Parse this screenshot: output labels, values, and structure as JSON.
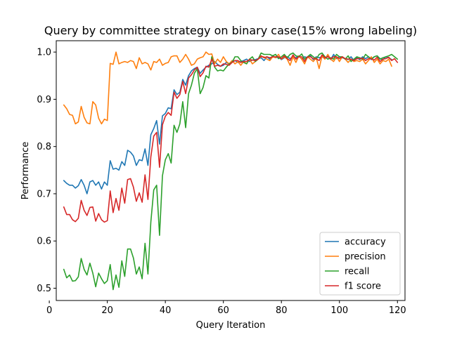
{
  "chart_data": {
    "type": "line",
    "title": "Query by committee strategy on binary case(15% wrong labeling)",
    "xlabel": "Query Iteration",
    "ylabel": "Performance",
    "xlim": [
      2.4,
      122.6
    ],
    "ylim": [
      0.474,
      1.024
    ],
    "xticks": [
      0,
      20,
      40,
      60,
      80,
      100,
      120
    ],
    "yticks": [
      0.5,
      0.6,
      0.7,
      0.8,
      0.9,
      1.0
    ],
    "xtick_labels": [
      "0",
      "20",
      "40",
      "60",
      "80",
      "100",
      "120"
    ],
    "ytick_labels": [
      "0.5",
      "0.6",
      "0.7",
      "0.8",
      "0.9",
      "1.0"
    ],
    "grid": false,
    "legend_position": "lower right",
    "x_start": 5,
    "x_step": 1,
    "series": [
      {
        "name": "accuracy",
        "color": "#1f77b4",
        "values": [
          0.728,
          0.722,
          0.718,
          0.718,
          0.712,
          0.717,
          0.73,
          0.718,
          0.7,
          0.725,
          0.728,
          0.718,
          0.725,
          0.71,
          0.725,
          0.718,
          0.77,
          0.752,
          0.754,
          0.75,
          0.768,
          0.76,
          0.792,
          0.788,
          0.78,
          0.76,
          0.772,
          0.77,
          0.795,
          0.76,
          0.825,
          0.838,
          0.855,
          0.805,
          0.865,
          0.87,
          0.882,
          0.88,
          0.92,
          0.91,
          0.915,
          0.942,
          0.93,
          0.95,
          0.96,
          0.965,
          0.968,
          0.955,
          0.962,
          0.968,
          0.972,
          0.975,
          0.98,
          0.974,
          0.97,
          0.972,
          0.978,
          0.975,
          0.98,
          0.982,
          0.978,
          0.98,
          0.982,
          0.985,
          0.98,
          0.983,
          0.984,
          0.986,
          0.988,
          0.982,
          0.99,
          0.985,
          0.992,
          0.988,
          0.99,
          0.984,
          0.988,
          0.99,
          0.986,
          0.99,
          0.988,
          0.992,
          0.985,
          0.99,
          0.988,
          0.992,
          0.984,
          0.99,
          0.988,
          0.99,
          0.986,
          0.992,
          0.984,
          0.995,
          0.986,
          0.99,
          0.988,
          0.986,
          0.984,
          0.99,
          0.982,
          0.988,
          0.984,
          0.99,
          0.986,
          0.99,
          0.984,
          0.99,
          0.992,
          0.986,
          0.984,
          0.99,
          0.988,
          0.984
        ]
      },
      {
        "name": "precision",
        "color": "#ff7f0e",
        "values": [
          0.888,
          0.88,
          0.868,
          0.866,
          0.848,
          0.852,
          0.885,
          0.862,
          0.85,
          0.848,
          0.895,
          0.888,
          0.86,
          0.848,
          0.858,
          0.855,
          0.976,
          0.974,
          1.0,
          0.975,
          0.978,
          0.98,
          0.978,
          0.982,
          0.98,
          0.965,
          0.988,
          0.975,
          0.978,
          0.975,
          0.962,
          0.98,
          0.978,
          0.985,
          0.972,
          0.976,
          0.978,
          0.99,
          0.992,
          0.992,
          0.978,
          0.985,
          0.995,
          0.985,
          0.972,
          0.975,
          0.985,
          0.988,
          0.99,
          1.0,
          0.995,
          0.996,
          0.975,
          0.985,
          0.978,
          0.99,
          0.98,
          0.975,
          0.982,
          0.975,
          0.98,
          0.972,
          0.98,
          0.975,
          0.985,
          0.975,
          0.98,
          0.985,
          0.99,
          0.99,
          0.985,
          0.982,
          0.99,
          0.988,
          0.995,
          0.985,
          0.99,
          0.985,
          0.972,
          0.99,
          0.978,
          0.992,
          0.985,
          0.975,
          0.99,
          0.985,
          0.98,
          0.988,
          0.965,
          0.992,
          0.985,
          0.995,
          0.985,
          0.98,
          0.99,
          0.98,
          0.99,
          0.985,
          0.978,
          0.985,
          0.98,
          0.982,
          0.98,
          0.985,
          0.975,
          0.982,
          0.99,
          0.978,
          0.985,
          0.975,
          0.982,
          0.98,
          0.985,
          0.97
        ]
      },
      {
        "name": "recall",
        "color": "#2ca02c",
        "values": [
          0.54,
          0.522,
          0.528,
          0.515,
          0.516,
          0.524,
          0.563,
          0.54,
          0.528,
          0.553,
          0.532,
          0.503,
          0.532,
          0.52,
          0.51,
          0.516,
          0.55,
          0.497,
          0.528,
          0.502,
          0.558,
          0.525,
          0.583,
          0.583,
          0.564,
          0.53,
          0.545,
          0.52,
          0.595,
          0.53,
          0.64,
          0.708,
          0.718,
          0.612,
          0.738,
          0.772,
          0.785,
          0.765,
          0.845,
          0.83,
          0.848,
          0.895,
          0.84,
          0.912,
          0.93,
          0.955,
          0.965,
          0.912,
          0.925,
          0.95,
          0.945,
          0.99,
          0.968,
          0.96,
          0.962,
          0.96,
          0.968,
          0.975,
          0.978,
          0.99,
          0.99,
          0.982,
          0.978,
          0.975,
          0.985,
          0.99,
          0.98,
          0.985,
          0.998,
          0.995,
          0.995,
          0.995,
          0.992,
          0.995,
          0.986,
          0.99,
          0.995,
          0.988,
          0.995,
          0.998,
          0.992,
          0.99,
          0.996,
          0.985,
          0.99,
          0.995,
          0.99,
          0.985,
          0.995,
          0.998,
          0.99,
          0.985,
          0.988,
          0.985,
          0.995,
          0.99,
          0.99,
          0.985,
          0.992,
          0.98,
          0.985,
          0.99,
          0.988,
          0.985,
          0.995,
          0.99,
          0.985,
          0.99,
          0.992,
          0.985,
          0.988,
          0.99,
          0.992,
          0.995,
          0.99,
          0.985
        ]
      },
      {
        "name": "f1 score",
        "color": "#d62728",
        "values": [
          0.672,
          0.656,
          0.656,
          0.645,
          0.641,
          0.648,
          0.686,
          0.665,
          0.654,
          0.671,
          0.672,
          0.642,
          0.658,
          0.645,
          0.64,
          0.643,
          0.706,
          0.66,
          0.69,
          0.665,
          0.712,
          0.68,
          0.73,
          0.732,
          0.714,
          0.684,
          0.702,
          0.682,
          0.74,
          0.688,
          0.778,
          0.822,
          0.83,
          0.756,
          0.846,
          0.864,
          0.872,
          0.866,
          0.915,
          0.902,
          0.91,
          0.938,
          0.912,
          0.945,
          0.952,
          0.962,
          0.968,
          0.948,
          0.956,
          0.97,
          0.968,
          0.985,
          0.97,
          0.972,
          0.97,
          0.975,
          0.974,
          0.972,
          0.978,
          0.982,
          0.982,
          0.978,
          0.98,
          0.98,
          0.984,
          0.983,
          0.982,
          0.985,
          0.992,
          0.988,
          0.99,
          0.988,
          0.99,
          0.99,
          0.99,
          0.986,
          0.992,
          0.986,
          0.982,
          0.994,
          0.985,
          0.99,
          0.99,
          0.98,
          0.99,
          0.99,
          0.986,
          0.986,
          0.982,
          0.994,
          0.988,
          0.99,
          0.986,
          0.99,
          0.99,
          0.986,
          0.99,
          0.986,
          0.985,
          0.985,
          0.982,
          0.986,
          0.986,
          0.987,
          0.982,
          0.986,
          0.986,
          0.983,
          0.989,
          0.98,
          0.985,
          0.986,
          0.989,
          0.982,
          0.986,
          0.978
        ]
      }
    ]
  }
}
